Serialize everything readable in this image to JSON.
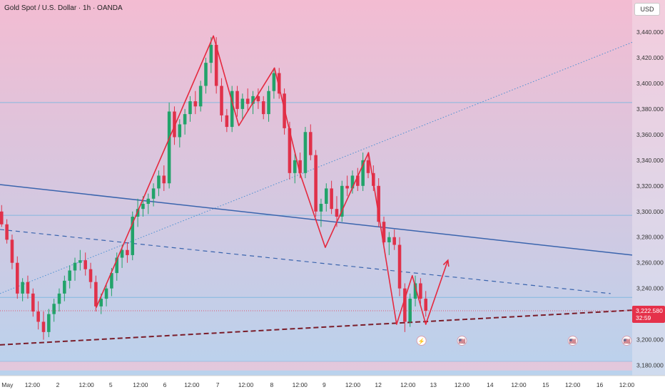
{
  "header": {
    "title": "Gold Spot / U.S. Dollar · 1h · OANDA",
    "currency": "USD"
  },
  "colors": {
    "bg_top": "#f3bcd2",
    "bg_bottom": "#b7d3ee",
    "up": "#22a36a",
    "down": "#e0314a",
    "pattern": "#e5293f",
    "trend_line": "#3a64ad",
    "dotted_line": "#4a8fd1",
    "support_line": "#7a1d2a",
    "horizontal": "#7db6df",
    "price_badge": "#e5314a"
  },
  "chart_data": {
    "type": "candlestick",
    "symbol": "XAUUSD",
    "timeframe": "1h",
    "ylim": [
      3172,
      3465
    ],
    "yticks": [
      3440,
      3420,
      3400,
      3380,
      3360,
      3340,
      3320,
      3300,
      3280,
      3260,
      3240,
      3200,
      3180
    ],
    "ytick_labels": [
      "3,440.000",
      "3,420.000",
      "3,400.000",
      "3,380.000",
      "3,360.000",
      "3,340.000",
      "3,320.000",
      "3,300.000",
      "3,280.000",
      "3,260.000",
      "3,240.000",
      "3,200.000",
      "3,180.000"
    ],
    "xlim": [
      0,
      117
    ],
    "x_labels": [
      {
        "x": 0.3,
        "label": "May"
      },
      {
        "x": 6,
        "label": "12:00"
      },
      {
        "x": 10.7,
        "label": "2"
      },
      {
        "x": 16,
        "label": "12:00"
      },
      {
        "x": 20.5,
        "label": "5"
      },
      {
        "x": 26,
        "label": "12:00"
      },
      {
        "x": 30.5,
        "label": "6"
      },
      {
        "x": 35.5,
        "label": "12:00"
      },
      {
        "x": 40.3,
        "label": "7"
      },
      {
        "x": 45.5,
        "label": "12:00"
      },
      {
        "x": 50.3,
        "label": "8"
      },
      {
        "x": 55.5,
        "label": "12:00"
      },
      {
        "x": 60,
        "label": "9"
      },
      {
        "x": 65.3,
        "label": "12:00"
      },
      {
        "x": 70,
        "label": "12"
      },
      {
        "x": 75.5,
        "label": "12:00"
      },
      {
        "x": 80.2,
        "label": "13"
      },
      {
        "x": 85.5,
        "label": "12:00"
      },
      {
        "x": 90.7,
        "label": "14"
      },
      {
        "x": 96,
        "label": "12:00"
      },
      {
        "x": 101,
        "label": "15"
      },
      {
        "x": 106,
        "label": "12:00"
      },
      {
        "x": 111,
        "label": "16"
      },
      {
        "x": 116,
        "label": "12:00"
      }
    ],
    "candles": [
      [
        3300,
        3305,
        3288,
        3290
      ],
      [
        3290,
        3294,
        3275,
        3278
      ],
      [
        3278,
        3282,
        3255,
        3260
      ],
      [
        3260,
        3265,
        3232,
        3236
      ],
      [
        3236,
        3248,
        3230,
        3245
      ],
      [
        3245,
        3250,
        3232,
        3236
      ],
      [
        3236,
        3240,
        3218,
        3222
      ],
      [
        3222,
        3230,
        3208,
        3214
      ],
      [
        3214,
        3222,
        3200,
        3206
      ],
      [
        3206,
        3224,
        3202,
        3220
      ],
      [
        3220,
        3232,
        3214,
        3228
      ],
      [
        3228,
        3240,
        3222,
        3236
      ],
      [
        3236,
        3250,
        3230,
        3246
      ],
      [
        3246,
        3258,
        3240,
        3254
      ],
      [
        3254,
        3264,
        3246,
        3260
      ],
      [
        3260,
        3270,
        3254,
        3262
      ],
      [
        3262,
        3268,
        3250,
        3255
      ],
      [
        3255,
        3260,
        3240,
        3245
      ],
      [
        3245,
        3250,
        3222,
        3226
      ],
      [
        3226,
        3236,
        3220,
        3232
      ],
      [
        3232,
        3244,
        3226,
        3240
      ],
      [
        3240,
        3256,
        3234,
        3252
      ],
      [
        3252,
        3268,
        3246,
        3264
      ],
      [
        3264,
        3274,
        3256,
        3270
      ],
      [
        3270,
        3276,
        3260,
        3266
      ],
      [
        3266,
        3300,
        3262,
        3296
      ],
      [
        3296,
        3310,
        3288,
        3302
      ],
      [
        3302,
        3312,
        3296,
        3306
      ],
      [
        3306,
        3314,
        3298,
        3310
      ],
      [
        3310,
        3322,
        3304,
        3318
      ],
      [
        3318,
        3332,
        3312,
        3328
      ],
      [
        3328,
        3336,
        3316,
        3322
      ],
      [
        3322,
        3385,
        3318,
        3378
      ],
      [
        3378,
        3382,
        3352,
        3358
      ],
      [
        3358,
        3372,
        3350,
        3368
      ],
      [
        3368,
        3380,
        3360,
        3376
      ],
      [
        3376,
        3390,
        3370,
        3386
      ],
      [
        3386,
        3394,
        3376,
        3382
      ],
      [
        3382,
        3402,
        3378,
        3398
      ],
      [
        3398,
        3420,
        3392,
        3416
      ],
      [
        3416,
        3436,
        3408,
        3430
      ],
      [
        3430,
        3436,
        3392,
        3398
      ],
      [
        3398,
        3404,
        3370,
        3375
      ],
      [
        3375,
        3380,
        3362,
        3366
      ],
      [
        3366,
        3398,
        3362,
        3394
      ],
      [
        3394,
        3398,
        3374,
        3380
      ],
      [
        3380,
        3392,
        3372,
        3388
      ],
      [
        3388,
        3396,
        3378,
        3384
      ],
      [
        3384,
        3394,
        3376,
        3390
      ],
      [
        3390,
        3396,
        3380,
        3386
      ],
      [
        3386,
        3390,
        3372,
        3376
      ],
      [
        3376,
        3398,
        3370,
        3394
      ],
      [
        3394,
        3412,
        3388,
        3408
      ],
      [
        3408,
        3412,
        3388,
        3392
      ],
      [
        3392,
        3396,
        3360,
        3365
      ],
      [
        3365,
        3370,
        3325,
        3330
      ],
      [
        3330,
        3345,
        3322,
        3340
      ],
      [
        3340,
        3346,
        3326,
        3330
      ],
      [
        3330,
        3366,
        3326,
        3362
      ],
      [
        3362,
        3368,
        3340,
        3344
      ],
      [
        3344,
        3348,
        3296,
        3300
      ],
      [
        3300,
        3310,
        3288,
        3306
      ],
      [
        3306,
        3322,
        3300,
        3318
      ],
      [
        3318,
        3324,
        3298,
        3302
      ],
      [
        3302,
        3312,
        3288,
        3296
      ],
      [
        3296,
        3324,
        3292,
        3320
      ],
      [
        3320,
        3328,
        3312,
        3318
      ],
      [
        3318,
        3332,
        3314,
        3328
      ],
      [
        3328,
        3334,
        3316,
        3320
      ],
      [
        3320,
        3346,
        3316,
        3340
      ],
      [
        3340,
        3346,
        3326,
        3330
      ],
      [
        3330,
        3336,
        3316,
        3320
      ],
      [
        3320,
        3326,
        3288,
        3292
      ],
      [
        3292,
        3296,
        3272,
        3276
      ],
      [
        3276,
        3284,
        3266,
        3280
      ],
      [
        3280,
        3286,
        3270,
        3274
      ],
      [
        3274,
        3280,
        3234,
        3240
      ],
      [
        3240,
        3244,
        3206,
        3214
      ],
      [
        3214,
        3236,
        3210,
        3232
      ],
      [
        3232,
        3250,
        3226,
        3244
      ],
      [
        3244,
        3248,
        3228,
        3232
      ],
      [
        3232,
        3238,
        3218,
        3222.58
      ]
    ],
    "pattern_path": [
      [
        17.8,
        3225
      ],
      [
        39.5,
        3437
      ],
      [
        44.2,
        3367
      ],
      [
        50.8,
        3412
      ],
      [
        55.5,
        3330
      ],
      [
        60.2,
        3272
      ],
      [
        68.2,
        3346
      ],
      [
        73.4,
        3212
      ],
      [
        76.3,
        3250
      ],
      [
        78.8,
        3212
      ],
      [
        82.9,
        3262
      ]
    ],
    "pattern_arrow": {
      "from": [
        78.8,
        3212
      ],
      "to": [
        82.9,
        3262
      ]
    },
    "lines": {
      "blue_trend": {
        "from": [
          0,
          3321
        ],
        "to": [
          117,
          3266
        ]
      },
      "blue_dashed": {
        "from": [
          0,
          3286
        ],
        "to": [
          113,
          3236
        ]
      },
      "dotted_trend": {
        "from": [
          0,
          3236
        ],
        "to": [
          117,
          3432
        ]
      },
      "support": {
        "from": [
          0,
          3196
        ],
        "to": [
          117,
          3223
        ]
      }
    },
    "horizontal_levels": [
      3385,
      3297,
      3233,
      3183
    ],
    "current_price": {
      "value": 3222.58,
      "label": "3,222.580",
      "countdown": "32:59"
    },
    "events": [
      {
        "x": 78,
        "symbol": "⚡"
      },
      {
        "x": 85.5,
        "symbol": "🇺🇸"
      },
      {
        "x": 106,
        "symbol": "🇺🇸"
      },
      {
        "x": 116,
        "symbol": "🇺🇸"
      }
    ]
  }
}
